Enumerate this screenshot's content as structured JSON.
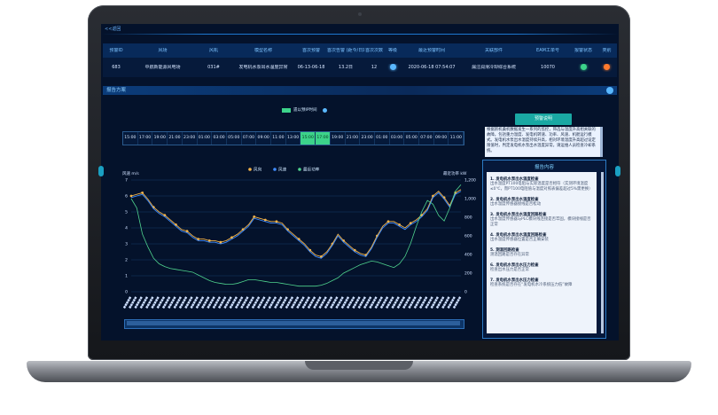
{
  "topbar": {
    "back": "<<返回"
  },
  "table": {
    "headers": [
      "预警ID",
      "风场",
      "风机",
      "模型名称",
      "首次预警",
      "首次告警\n(距今/日期)",
      "首次次数",
      "等级",
      "最近预警时间",
      "关联部件",
      "EAM工单号",
      "报警状态",
      "类别"
    ],
    "row": [
      "683",
      "中航新能源风电场",
      "031#",
      "发电机水泵出水温度异常",
      "06-13-06-18",
      "13.2日",
      "12",
      "●",
      "2020-06-18 07:54:07",
      "漏注润滑冷却综合系统",
      "10070",
      "●",
      "●"
    ]
  },
  "panel": {
    "title": "报告方案"
  },
  "legend_top": {
    "label": "遗以预IP时间"
  },
  "timeline": {
    "ticks": [
      "15:00",
      "17:00",
      "19:00",
      "21:00",
      "23:00",
      "01:00",
      "03:00",
      "05:00",
      "07:00",
      "09:00",
      "11:00",
      "13:00",
      "15:00",
      "17:00",
      "19:00",
      "21:00",
      "23:00",
      "01:00",
      "03:00",
      "05:00",
      "07:00",
      "09:00",
      "11:00"
    ],
    "active_indices": [
      12,
      13
    ]
  },
  "chart_data": {
    "type": "line",
    "title": "",
    "xlabel": "",
    "ylabel": "风速 m/s",
    "y2label": "最近功率 kW",
    "ylim": [
      0,
      7
    ],
    "y2lim": [
      0,
      1200
    ],
    "yticks": [
      "0",
      "1",
      "2",
      "3",
      "4",
      "5",
      "6",
      "7"
    ],
    "y2ticks": [
      "0",
      "200",
      "400",
      "600",
      "800",
      "1,000",
      "1,200"
    ],
    "legend": [
      "风向",
      "风速",
      "最近功率"
    ],
    "x_count": 60,
    "series": [
      {
        "name": "风向",
        "axis": "left",
        "values": [
          6.0,
          6.1,
          6.2,
          5.8,
          5.3,
          5.0,
          4.8,
          4.5,
          4.2,
          3.9,
          3.8,
          3.5,
          3.3,
          3.3,
          3.2,
          3.2,
          3.1,
          3.2,
          3.4,
          3.6,
          3.9,
          4.2,
          4.7,
          4.6,
          4.5,
          4.4,
          4.4,
          4.3,
          3.9,
          3.6,
          3.3,
          3.0,
          2.6,
          2.3,
          2.2,
          2.5,
          3.0,
          3.6,
          3.2,
          2.9,
          2.6,
          2.4,
          2.3,
          2.8,
          3.5,
          4.1,
          4.4,
          4.4,
          4.2,
          4.0,
          4.3,
          4.5,
          4.8,
          5.2,
          6.0,
          6.3,
          5.9,
          5.4,
          6.2,
          6.4
        ]
      },
      {
        "name": "风速",
        "axis": "left",
        "values": [
          5.9,
          6.0,
          6.1,
          5.7,
          5.2,
          4.9,
          4.7,
          4.4,
          4.1,
          3.8,
          3.7,
          3.4,
          3.2,
          3.2,
          3.1,
          3.1,
          3.0,
          3.1,
          3.3,
          3.5,
          3.8,
          4.1,
          4.6,
          4.5,
          4.4,
          4.3,
          4.3,
          4.2,
          3.8,
          3.5,
          3.2,
          2.9,
          2.5,
          2.2,
          2.1,
          2.4,
          2.9,
          3.5,
          3.1,
          2.8,
          2.5,
          2.3,
          2.2,
          2.7,
          3.4,
          4.0,
          4.3,
          4.3,
          4.1,
          3.9,
          4.2,
          4.4,
          4.7,
          5.1,
          5.9,
          6.2,
          5.8,
          5.3,
          6.1,
          6.3
        ]
      },
      {
        "name": "最近功率",
        "axis": "right",
        "values": [
          1000,
          900,
          620,
          480,
          360,
          300,
          270,
          250,
          240,
          230,
          220,
          210,
          180,
          150,
          120,
          100,
          90,
          80,
          80,
          90,
          110,
          130,
          130,
          120,
          110,
          100,
          100,
          90,
          80,
          70,
          60,
          60,
          60,
          60,
          70,
          90,
          120,
          150,
          200,
          230,
          260,
          290,
          310,
          330,
          320,
          300,
          280,
          260,
          300,
          380,
          520,
          700,
          860,
          980,
          940,
          820,
          760,
          900,
          1080,
          1150
        ]
      }
    ]
  },
  "right": {
    "button": "预警说明",
    "desc": "根据新机桑机数据发生一系列的监控，筛选与温度升高相关联的故障。包括重力温度、发电机转速、功率、风速、机舱运行模式。发电机水泵出水温度持续升高，相对环境温度升高超过设定限值时，判定发电机水泵出水温度异常。请运维人员检查冷却系统。",
    "content_title": "报告内容",
    "items": [
      {
        "title": "1. 发电机水泵出水温度检查",
        "body": "出水温度PT100电阻与实际温度是否相符（实测环境温度≤0℃，而PT100电阻值与温度对照表偏差超过5%需更换）"
      },
      {
        "title": "2. 发电机水泵出水温度检查",
        "body": "出水温度传感器接线是否松动"
      },
      {
        "title": "3. 发电机水泵出水温度回路检查",
        "body": "出水温度传感器与PLC模块线连接是否牢固，模块接线是否正常"
      },
      {
        "title": "4. 发电机水泵出水温度回路检查",
        "body": "出水温度传感器位置是否正确安装"
      },
      {
        "title": "5. 测温回路检查",
        "body": "测温回路是否存在异常"
      },
      {
        "title": "6. 发电机水泵出水压力检查",
        "body": "检查出水压力是否正常"
      },
      {
        "title": "7. 发电机水泵出水压力检查",
        "body": "检查系统是否存在“发电机水冷系统压力低”故障"
      }
    ]
  },
  "colors": {
    "bg": "#04122b",
    "accent": "#1aa8a3",
    "line_wind_dir": "#f3b44a",
    "line_wind_speed": "#3f8cff",
    "line_power": "#4fd38e"
  }
}
